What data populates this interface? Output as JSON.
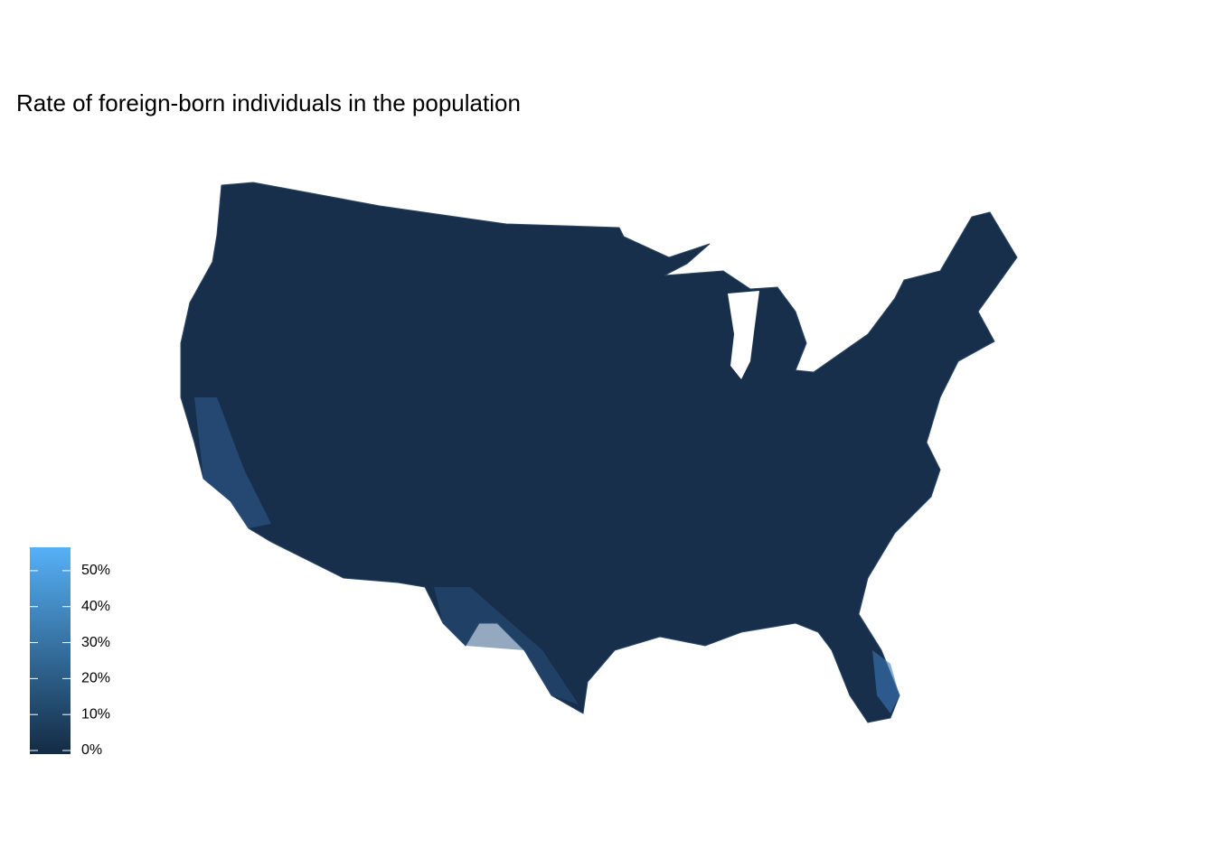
{
  "title": "Rate of foreign-born individuals in the population",
  "legend": {
    "lim": [
      -1,
      56.5
    ],
    "colors": [
      "#132b43",
      "#56b1f7"
    ],
    "ticks": [
      {
        "value": 0,
        "label": "0%"
      },
      {
        "value": 10,
        "label": "10%"
      },
      {
        "value": 20,
        "label": "20%"
      },
      {
        "value": 30,
        "label": "30%"
      },
      {
        "value": 40,
        "label": "40%"
      },
      {
        "value": 50,
        "label": "50%"
      }
    ]
  }
}
